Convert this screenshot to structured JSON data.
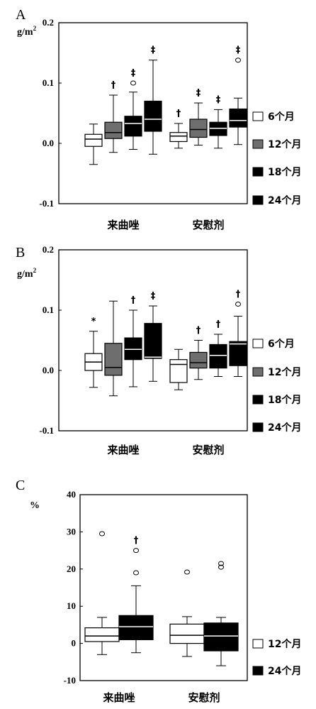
{
  "colors": {
    "fill_6m": "#ffffff",
    "fill_12m": "#6e6e6e",
    "fill_18m": "#000000",
    "fill_24m": "#000000",
    "stroke": "#000000"
  },
  "chart_data": [
    {
      "type": "boxplot",
      "panel": "A",
      "ylabel": "g/m2",
      "ylim": [
        -0.1,
        0.2
      ],
      "yticks": [
        -0.1,
        0.0,
        0.1,
        0.2
      ],
      "tick_labels": [
        "-0.1",
        "0.0",
        "0.1",
        "0.2"
      ],
      "categories": [
        "来曲唑",
        "安慰剂"
      ],
      "legend": [
        "6个月",
        "12个月",
        "18个月",
        "24个月"
      ],
      "series": [
        {
          "name": "6个月",
          "fill": "#ffffff",
          "boxes": [
            {
              "low": -0.035,
              "q1": -0.005,
              "median": 0.007,
              "q3": 0.015,
              "high": 0.032,
              "outliers": [],
              "mark": ""
            },
            {
              "low": -0.008,
              "q1": 0.003,
              "median": 0.012,
              "q3": 0.018,
              "high": 0.033,
              "outliers": [],
              "mark": "†"
            }
          ]
        },
        {
          "name": "12个月",
          "fill": "#6e6e6e",
          "boxes": [
            {
              "low": -0.015,
              "q1": 0.008,
              "median": 0.018,
              "q3": 0.035,
              "high": 0.08,
              "outliers": [],
              "mark": "†"
            },
            {
              "low": -0.003,
              "q1": 0.01,
              "median": 0.023,
              "q3": 0.04,
              "high": 0.067,
              "outliers": [],
              "mark": "‡"
            }
          ]
        },
        {
          "name": "18个月",
          "fill": "#000000",
          "boxes": [
            {
              "low": -0.01,
              "q1": 0.012,
              "median": 0.033,
              "q3": 0.045,
              "high": 0.085,
              "outliers": [
                0.1
              ],
              "mark": "‡"
            },
            {
              "low": -0.008,
              "q1": 0.013,
              "median": 0.025,
              "q3": 0.035,
              "high": 0.056,
              "outliers": [],
              "mark": "‡"
            }
          ]
        },
        {
          "name": "24个月",
          "fill": "#000000",
          "boxes": [
            {
              "low": -0.018,
              "q1": 0.02,
              "median": 0.04,
              "q3": 0.07,
              "high": 0.138,
              "outliers": [],
              "mark": "‡"
            },
            {
              "low": -0.002,
              "q1": 0.027,
              "median": 0.038,
              "q3": 0.057,
              "high": 0.075,
              "outliers": [
                0.138
              ],
              "mark": "‡"
            }
          ]
        }
      ]
    },
    {
      "type": "boxplot",
      "panel": "B",
      "ylabel": "g/m2",
      "ylim": [
        -0.1,
        0.2
      ],
      "yticks": [
        -0.1,
        0.0,
        0.1,
        0.2
      ],
      "tick_labels": [
        "-0.1",
        "0.0",
        "0.1",
        "0.2"
      ],
      "categories": [
        "来曲唑",
        "安慰剂"
      ],
      "legend": [
        "6个月",
        "12个月",
        "18个月",
        "24个月"
      ],
      "series": [
        {
          "name": "6个月",
          "fill": "#ffffff",
          "boxes": [
            {
              "low": -0.028,
              "q1": 0.0,
              "median": 0.014,
              "q3": 0.028,
              "high": 0.065,
              "outliers": [],
              "mark": "*"
            },
            {
              "low": -0.032,
              "q1": -0.02,
              "median": 0.01,
              "q3": 0.018,
              "high": 0.035,
              "outliers": [],
              "mark": ""
            }
          ]
        },
        {
          "name": "12个月",
          "fill": "#6e6e6e",
          "boxes": [
            {
              "low": -0.042,
              "q1": -0.008,
              "median": 0.005,
              "q3": 0.045,
              "high": 0.115,
              "outliers": [],
              "mark": ""
            },
            {
              "low": -0.015,
              "q1": 0.004,
              "median": 0.013,
              "q3": 0.03,
              "high": 0.05,
              "outliers": [],
              "mark": "†"
            }
          ]
        },
        {
          "name": "18个月",
          "fill": "#000000",
          "boxes": [
            {
              "low": -0.027,
              "q1": 0.018,
              "median": 0.035,
              "q3": 0.054,
              "high": 0.1,
              "outliers": [],
              "mark": "†"
            },
            {
              "low": -0.01,
              "q1": 0.004,
              "median": 0.025,
              "q3": 0.043,
              "high": 0.06,
              "outliers": [],
              "mark": "†"
            }
          ]
        },
        {
          "name": "24个月",
          "fill": "#000000",
          "boxes": [
            {
              "low": -0.018,
              "q1": 0.02,
              "median": 0.022,
              "q3": 0.078,
              "high": 0.107,
              "outliers": [],
              "mark": "‡"
            },
            {
              "low": -0.01,
              "q1": 0.008,
              "median": 0.044,
              "q3": 0.048,
              "high": 0.09,
              "outliers": [
                0.11
              ],
              "mark": "†"
            }
          ]
        }
      ]
    },
    {
      "type": "boxplot",
      "panel": "C",
      "ylabel": "%",
      "ylim": [
        -10,
        40
      ],
      "yticks": [
        -10,
        0,
        10,
        20,
        30,
        40
      ],
      "tick_labels": [
        "-10",
        "0",
        "10",
        "20",
        "30",
        "40"
      ],
      "categories": [
        "来曲唑",
        "安慰剂"
      ],
      "legend": [
        "12个月",
        "24个月"
      ],
      "series": [
        {
          "name": "12个月",
          "fill": "#ffffff",
          "boxes": [
            {
              "low": -3,
              "q1": 0.5,
              "median": 2.0,
              "q3": 4.2,
              "high": 7,
              "outliers": [
                29.5
              ],
              "mark": ""
            },
            {
              "low": -3.5,
              "q1": 0,
              "median": 2.2,
              "q3": 5.2,
              "high": 7.2,
              "outliers": [
                19.2
              ],
              "mark": ""
            }
          ]
        },
        {
          "name": "24个月",
          "fill": "#000000",
          "boxes": [
            {
              "low": -2.5,
              "q1": 1,
              "median": 4.5,
              "q3": 7.5,
              "high": 15.5,
              "outliers": [
                25,
                19
              ],
              "mark": "†"
            },
            {
              "low": -6,
              "q1": -2,
              "median": 2,
              "q3": 5.5,
              "high": 7,
              "outliers": [
                21.5,
                20.5
              ],
              "mark": ""
            }
          ]
        }
      ]
    }
  ]
}
